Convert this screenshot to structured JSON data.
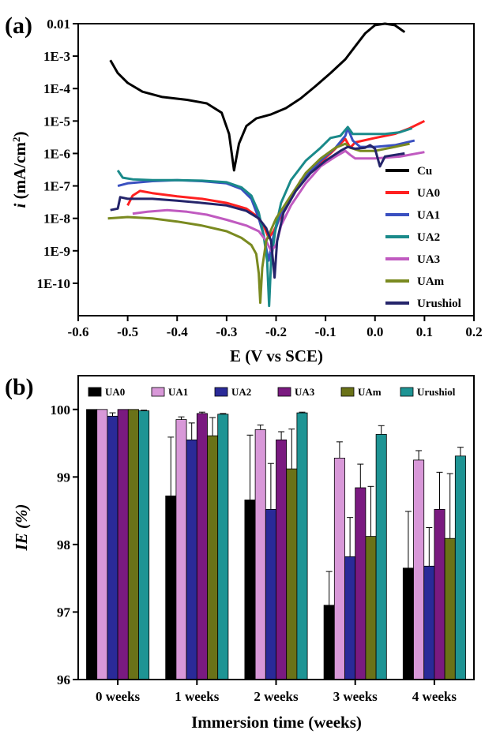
{
  "chart_data": [
    {
      "type": "line",
      "panel_label": "(a)",
      "xlabel": "E (V vs SCE)",
      "ylabel_italic": "i",
      "ylabel_rest": " (mA/cm",
      "ylabel_sup": "2",
      "ylabel_end": ")",
      "xlim": [
        -0.6,
        0.2
      ],
      "ylim_log10": [
        -11,
        -2
      ],
      "y_scale": "log",
      "x_ticks": [
        {
          "value": -0.6,
          "label": "-0.6"
        },
        {
          "value": -0.5,
          "label": "-0.5"
        },
        {
          "value": -0.4,
          "label": "-0.4"
        },
        {
          "value": -0.3,
          "label": "-0.3"
        },
        {
          "value": -0.2,
          "label": "-0.2"
        },
        {
          "value": -0.1,
          "label": "-0.1"
        },
        {
          "value": 0.0,
          "label": "0.0"
        },
        {
          "value": 0.1,
          "label": "0.1"
        },
        {
          "value": 0.2,
          "label": "0.2"
        }
      ],
      "y_ticks": [
        {
          "log10": -2,
          "label": "0.01"
        },
        {
          "log10": -3,
          "label": "1E-3"
        },
        {
          "log10": -4,
          "label": "1E-4"
        },
        {
          "log10": -5,
          "label": "1E-5"
        },
        {
          "log10": -6,
          "label": "1E-6"
        },
        {
          "log10": -7,
          "label": "1E-7"
        },
        {
          "log10": -8,
          "label": "1E-8"
        },
        {
          "log10": -9,
          "label": "1E-9"
        },
        {
          "log10": -10,
          "label": "1E-10"
        }
      ],
      "legend_position": "right",
      "series": [
        {
          "name": "Cu",
          "color": "#000000",
          "points": [
            [
              -0.535,
              0.00075
            ],
            [
              -0.52,
              0.0003
            ],
            [
              -0.5,
              0.00015
            ],
            [
              -0.47,
              8e-05
            ],
            [
              -0.43,
              5.5e-05
            ],
            [
              -0.38,
              4.5e-05
            ],
            [
              -0.34,
              3.5e-05
            ],
            [
              -0.31,
              1.8e-05
            ],
            [
              -0.295,
              4e-06
            ],
            [
              -0.285,
              3e-07
            ],
            [
              -0.275,
              2e-06
            ],
            [
              -0.26,
              7e-06
            ],
            [
              -0.24,
              1.2e-05
            ],
            [
              -0.21,
              1.6e-05
            ],
            [
              -0.18,
              2.5e-05
            ],
            [
              -0.15,
              5e-05
            ],
            [
              -0.12,
              0.00012
            ],
            [
              -0.09,
              0.0003
            ],
            [
              -0.06,
              0.0008
            ],
            [
              -0.04,
              0.002
            ],
            [
              -0.02,
              0.005
            ],
            [
              0.0,
              0.009
            ],
            [
              0.02,
              0.01
            ],
            [
              0.04,
              0.009
            ],
            [
              0.06,
              0.0055
            ]
          ]
        },
        {
          "name": "UA0",
          "color": "#ff2020",
          "points": [
            [
              -0.5,
              2.5e-08
            ],
            [
              -0.49,
              5e-08
            ],
            [
              -0.475,
              7e-08
            ],
            [
              -0.45,
              6e-08
            ],
            [
              -0.4,
              4.8e-08
            ],
            [
              -0.35,
              4e-08
            ],
            [
              -0.3,
              3e-08
            ],
            [
              -0.26,
              2e-08
            ],
            [
              -0.24,
              1.2e-08
            ],
            [
              -0.225,
              6e-09
            ],
            [
              -0.215,
              2.5e-09
            ],
            [
              -0.205,
              4e-09
            ],
            [
              -0.19,
              1.2e-08
            ],
            [
              -0.17,
              4e-08
            ],
            [
              -0.15,
              1.5e-07
            ],
            [
              -0.12,
              4e-07
            ],
            [
              -0.09,
              1e-06
            ],
            [
              -0.07,
              2e-06
            ],
            [
              -0.06,
              2.8e-06
            ],
            [
              -0.05,
              1.5e-06
            ],
            [
              -0.04,
              2.2e-06
            ],
            [
              0.0,
              3e-06
            ],
            [
              0.04,
              4e-06
            ],
            [
              0.07,
              6e-06
            ],
            [
              0.1,
              1e-05
            ]
          ]
        },
        {
          "name": "UA1",
          "color": "#3a50c0",
          "points": [
            [
              -0.52,
              1e-07
            ],
            [
              -0.5,
              1.2e-07
            ],
            [
              -0.45,
              1.4e-07
            ],
            [
              -0.4,
              1.5e-07
            ],
            [
              -0.35,
              1.4e-07
            ],
            [
              -0.3,
              1.2e-07
            ],
            [
              -0.27,
              8e-08
            ],
            [
              -0.25,
              4e-08
            ],
            [
              -0.235,
              1e-08
            ],
            [
              -0.225,
              3e-09
            ],
            [
              -0.215,
              5e-10
            ],
            [
              -0.205,
              3e-09
            ],
            [
              -0.19,
              1.5e-08
            ],
            [
              -0.17,
              5e-08
            ],
            [
              -0.14,
              2e-07
            ],
            [
              -0.11,
              6e-07
            ],
            [
              -0.08,
              1.5e-06
            ],
            [
              -0.06,
              3.5e-06
            ],
            [
              -0.055,
              6e-06
            ],
            [
              -0.045,
              2.5e-06
            ],
            [
              -0.03,
              1.6e-06
            ],
            [
              0.0,
              1.6e-06
            ],
            [
              0.04,
              1.8e-06
            ],
            [
              0.08,
              2.5e-06
            ]
          ]
        },
        {
          "name": "UA2",
          "color": "#1a8a8a",
          "points": [
            [
              -0.52,
              3e-07
            ],
            [
              -0.51,
              1.8e-07
            ],
            [
              -0.49,
              1.6e-07
            ],
            [
              -0.45,
              1.5e-07
            ],
            [
              -0.4,
              1.5e-07
            ],
            [
              -0.35,
              1.45e-07
            ],
            [
              -0.3,
              1.3e-07
            ],
            [
              -0.27,
              9e-08
            ],
            [
              -0.25,
              5e-08
            ],
            [
              -0.235,
              1.5e-08
            ],
            [
              -0.225,
              3e-09
            ],
            [
              -0.218,
              5e-10
            ],
            [
              -0.214,
              2e-11
            ],
            [
              -0.21,
              5e-10
            ],
            [
              -0.2,
              6e-09
            ],
            [
              -0.19,
              3e-08
            ],
            [
              -0.17,
              1.5e-07
            ],
            [
              -0.14,
              6e-07
            ],
            [
              -0.11,
              1.5e-06
            ],
            [
              -0.09,
              3e-06
            ],
            [
              -0.07,
              3.5e-06
            ],
            [
              -0.055,
              6.5e-06
            ],
            [
              -0.045,
              4e-06
            ],
            [
              -0.02,
              4e-06
            ],
            [
              0.02,
              4e-06
            ],
            [
              0.05,
              4.5e-06
            ],
            [
              0.075,
              6e-06
            ]
          ]
        },
        {
          "name": "UA3",
          "color": "#c05ac0",
          "points": [
            [
              -0.49,
              1.4e-08
            ],
            [
              -0.46,
              1.6e-08
            ],
            [
              -0.42,
              1.8e-08
            ],
            [
              -0.38,
              1.6e-08
            ],
            [
              -0.34,
              1.3e-08
            ],
            [
              -0.3,
              9e-09
            ],
            [
              -0.26,
              6e-09
            ],
            [
              -0.235,
              4e-09
            ],
            [
              -0.22,
              2e-09
            ],
            [
              -0.21,
              1e-09
            ],
            [
              -0.2,
              1.5e-09
            ],
            [
              -0.19,
              6e-09
            ],
            [
              -0.17,
              2.5e-08
            ],
            [
              -0.14,
              1.2e-07
            ],
            [
              -0.11,
              4e-07
            ],
            [
              -0.08,
              8e-07
            ],
            [
              -0.06,
              1.2e-06
            ],
            [
              -0.05,
              9e-07
            ],
            [
              -0.04,
              7e-07
            ],
            [
              0.0,
              7e-07
            ],
            [
              0.05,
              8e-07
            ],
            [
              0.1,
              1.1e-06
            ]
          ]
        },
        {
          "name": "UAm",
          "color": "#7a8a20",
          "points": [
            [
              -0.54,
              1e-08
            ],
            [
              -0.5,
              1.1e-08
            ],
            [
              -0.45,
              1e-08
            ],
            [
              -0.4,
              8e-09
            ],
            [
              -0.35,
              6e-09
            ],
            [
              -0.3,
              4e-09
            ],
            [
              -0.27,
              2.5e-09
            ],
            [
              -0.25,
              1.5e-09
            ],
            [
              -0.24,
              8e-10
            ],
            [
              -0.235,
              2e-10
            ],
            [
              -0.232,
              2.5e-11
            ],
            [
              -0.228,
              3e-10
            ],
            [
              -0.22,
              2e-09
            ],
            [
              -0.2,
              1e-08
            ],
            [
              -0.17,
              5e-08
            ],
            [
              -0.14,
              2.5e-07
            ],
            [
              -0.11,
              7e-07
            ],
            [
              -0.08,
              1.5e-06
            ],
            [
              -0.06,
              2e-06
            ],
            [
              -0.05,
              1.5e-06
            ],
            [
              -0.03,
              1.2e-06
            ],
            [
              0.0,
              1.2e-06
            ],
            [
              0.04,
              1.6e-06
            ],
            [
              0.07,
              2e-06
            ]
          ]
        },
        {
          "name": "Urushiol",
          "color": "#24246a",
          "points": [
            [
              -0.535,
              1.8e-08
            ],
            [
              -0.52,
              2e-08
            ],
            [
              -0.515,
              4.5e-08
            ],
            [
              -0.5,
              4e-08
            ],
            [
              -0.45,
              4e-08
            ],
            [
              -0.4,
              3.5e-08
            ],
            [
              -0.35,
              3e-08
            ],
            [
              -0.3,
              2.5e-08
            ],
            [
              -0.26,
              1.7e-08
            ],
            [
              -0.235,
              1e-08
            ],
            [
              -0.22,
              5e-09
            ],
            [
              -0.21,
              2e-09
            ],
            [
              -0.203,
              1.5e-10
            ],
            [
              -0.198,
              2e-09
            ],
            [
              -0.185,
              1.5e-08
            ],
            [
              -0.16,
              7e-08
            ],
            [
              -0.13,
              2.5e-07
            ],
            [
              -0.1,
              6e-07
            ],
            [
              -0.07,
              1.2e-06
            ],
            [
              -0.055,
              1.6e-06
            ],
            [
              -0.04,
              1.4e-06
            ],
            [
              -0.02,
              1.5e-06
            ],
            [
              -0.01,
              1.8e-06
            ],
            [
              0.0,
              1.4e-06
            ],
            [
              0.01,
              4e-07
            ],
            [
              0.02,
              8e-07
            ],
            [
              0.04,
              9e-07
            ],
            [
              0.06,
              1e-06
            ]
          ]
        }
      ]
    },
    {
      "type": "bar",
      "panel_label": "(b)",
      "xlabel": "Immersion time (weeks)",
      "ylabel": "IE (%)",
      "ylim": [
        96,
        100.5
      ],
      "y_ticks": [
        96,
        97,
        98,
        99,
        100
      ],
      "legend_position": "top",
      "categories": [
        "0 weeks",
        "1 weeks",
        "2 weeks",
        "3 weeks",
        "4 weeks"
      ],
      "series": [
        {
          "name": "UA0",
          "color": "#000000",
          "values": [
            100.0,
            98.72,
            98.66,
            97.1,
            97.65
          ],
          "errors": [
            0.0,
            0.87,
            0.96,
            0.5,
            0.84
          ]
        },
        {
          "name": "UA1",
          "color": "#d898d8",
          "values": [
            100.0,
            99.85,
            99.7,
            99.28,
            99.25
          ],
          "errors": [
            0.0,
            0.04,
            0.07,
            0.24,
            0.14
          ]
        },
        {
          "name": "UA2",
          "color": "#2a2a98",
          "values": [
            99.9,
            99.55,
            98.52,
            97.82,
            97.68
          ],
          "errors": [
            0.05,
            0.25,
            0.68,
            0.58,
            0.57
          ]
        },
        {
          "name": "UA3",
          "color": "#7a1a80",
          "values": [
            100.0,
            99.94,
            99.55,
            98.84,
            98.52
          ],
          "errors": [
            0.0,
            0.02,
            0.12,
            0.35,
            0.55
          ]
        },
        {
          "name": "UAm",
          "color": "#6a7218",
          "values": [
            100.0,
            99.61,
            99.12,
            98.12,
            98.09
          ],
          "errors": [
            0.0,
            0.27,
            0.59,
            0.74,
            0.96
          ]
        },
        {
          "name": "Urushiol",
          "color": "#1e9494",
          "values": [
            99.98,
            99.93,
            99.95,
            99.63,
            99.31
          ],
          "errors": [
            0.01,
            0.01,
            0.01,
            0.13,
            0.13
          ]
        }
      ]
    }
  ]
}
